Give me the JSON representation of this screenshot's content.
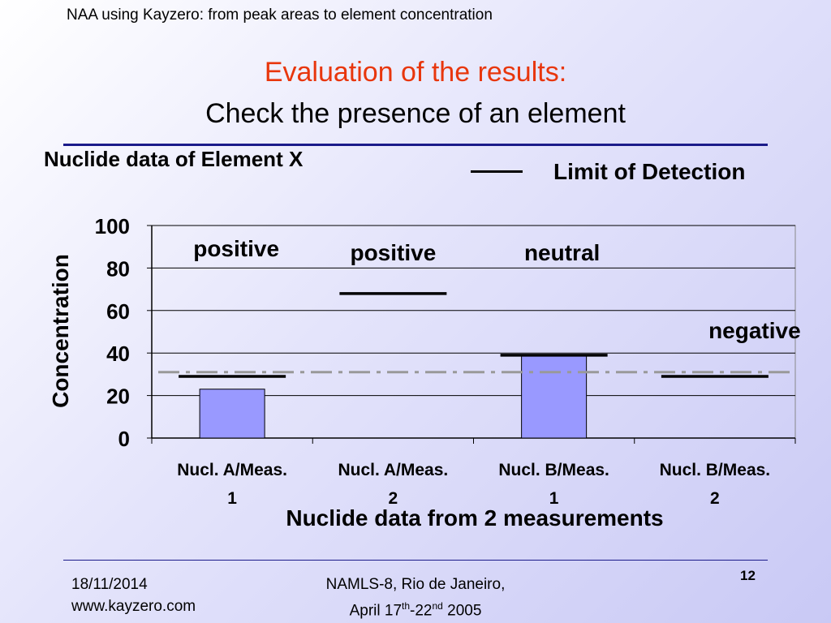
{
  "slide": {
    "header": "NAA using Kayzero: from peak areas to element concentration",
    "title_line1": "Evaluation of the results:",
    "title_line2": "Check the presence of an element",
    "page_number": "12",
    "footer_date": "18/11/2014",
    "footer_site": "www.kayzero.com",
    "footer_event_line1": "NAMLS-8, Rio de Janeiro,",
    "footer_event_prefix": "April 17",
    "footer_event_sup1": "th",
    "footer_event_mid": "-22",
    "footer_event_sup2": "nd",
    "footer_event_year": " 2005"
  },
  "chart_data": {
    "type": "bar",
    "subtitle": "Nuclide data of Element X",
    "categories": [
      [
        "Nucl. A/Meas.",
        "1"
      ],
      [
        "Nucl. A/Meas.",
        "2"
      ],
      [
        "Nucl. B/Meas.",
        "1"
      ],
      [
        "Nucl. B/Meas.",
        "2"
      ]
    ],
    "values": [
      23,
      0,
      39,
      0
    ],
    "limit_of_detection": [
      29,
      68,
      39,
      29
    ],
    "reference_line": 31,
    "annotations": [
      "positive",
      "positive",
      "neutral",
      "negative"
    ],
    "xlabel": "Nuclide data from 2 measurements",
    "ylabel": "Concentration",
    "ylim": [
      0,
      100
    ],
    "yticks": [
      0,
      20,
      40,
      60,
      80,
      100
    ],
    "legend": "Limit of Detection",
    "legend_position": "top-right",
    "grid": true,
    "bar_color": "#9999ff",
    "lod_color": "#000000",
    "reference_color": "#999999"
  }
}
